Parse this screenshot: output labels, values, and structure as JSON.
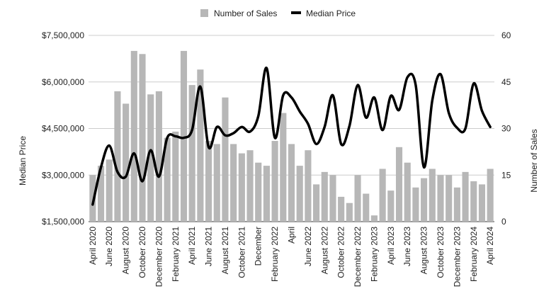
{
  "chart_data": {
    "type": "bar+line",
    "legend_position": "top-center",
    "grid": true,
    "series": [
      {
        "name": "Number of Sales",
        "type": "bar",
        "axis": "right",
        "color": "#b7b7b7",
        "values": [
          15,
          18,
          20,
          42,
          38,
          55,
          54,
          41,
          42,
          27,
          29,
          55,
          44,
          49,
          26,
          25,
          40,
          25,
          22,
          23,
          19,
          18,
          26,
          35,
          25,
          18,
          23,
          12,
          16,
          15,
          8,
          6,
          15,
          9,
          2,
          17,
          10,
          24,
          19,
          11,
          14,
          17,
          15,
          15,
          11,
          16,
          13,
          12,
          17
        ]
      },
      {
        "name": "Median Price",
        "type": "line",
        "axis": "left",
        "color": "#000000",
        "values": [
          2050000,
          3250000,
          3950000,
          3100000,
          2950000,
          3700000,
          2800000,
          3800000,
          2950000,
          4200000,
          4250000,
          4200000,
          4450000,
          5850000,
          3900000,
          4550000,
          4280000,
          4350000,
          4550000,
          4400000,
          4900000,
          6450000,
          4200000,
          5570000,
          5500000,
          5050000,
          4650000,
          4000000,
          4550000,
          5570000,
          4000000,
          4580000,
          5900000,
          4850000,
          5500000,
          4450000,
          5550000,
          5100000,
          6150000,
          5900000,
          3250000,
          5400000,
          6250000,
          5000000,
          4520000,
          4500000,
          5950000,
          5070000,
          4550000
        ]
      }
    ],
    "x_labels": [
      "April 2020",
      "",
      "June 2020",
      "",
      "August 2020",
      "",
      "October 2020",
      "",
      "December 2020",
      "",
      "February 2021",
      "",
      "April 2021",
      "",
      "June 2021",
      "",
      "August 2021",
      "",
      "October 2021",
      "",
      "December",
      "",
      "February 2022",
      "",
      "April",
      "",
      "June 2022",
      "",
      "August 2022",
      "",
      "October 2022",
      "",
      "December 2022",
      "",
      "February 2023",
      "",
      "April 2023",
      "",
      "June 2023",
      "",
      "August 2023",
      "",
      "October 2023",
      "",
      "December 2023",
      "",
      "February 2024",
      "",
      "April 2024"
    ],
    "left_axis": {
      "label": "Median Price",
      "min": 1500000,
      "max": 7500000,
      "ticks": [
        "$1,500,000",
        "$3,000,000",
        "$4,500,000",
        "$6,000,000",
        "$7,500,000"
      ]
    },
    "right_axis": {
      "label": "Number of Sales",
      "min": 0,
      "max": 60,
      "ticks": [
        "0",
        "15",
        "30",
        "45",
        "60"
      ]
    }
  }
}
